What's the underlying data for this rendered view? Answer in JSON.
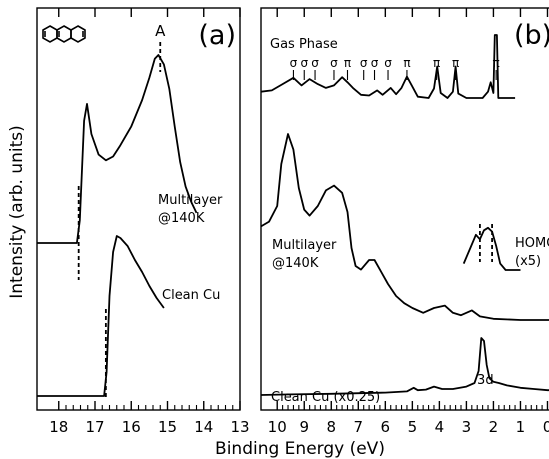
{
  "figure": {
    "ylabel": "Intensity (arb. units)",
    "xlabel": "Binding Energy (eV)"
  },
  "chart_data": [
    {
      "type": "line",
      "panel_label": "(a)",
      "molecule_icon": "anthracene-structure-icon",
      "xlim": [
        18.6,
        13.0
      ],
      "x_axis_reversed": true,
      "xticks": [
        18,
        17,
        16,
        15,
        14,
        13
      ],
      "peak_label": "A",
      "peak_label_x": 15.2,
      "series": [
        {
          "name": "Multilayer @140K",
          "label_lines": [
            "Multilayer",
            "@140K"
          ],
          "cutoff_marker_x": 17.45,
          "points": [
            [
              18.6,
              0.0
            ],
            [
              17.5,
              0.0
            ],
            [
              17.42,
              0.12
            ],
            [
              17.3,
              0.65
            ],
            [
              17.22,
              0.74
            ],
            [
              17.1,
              0.58
            ],
            [
              16.9,
              0.47
            ],
            [
              16.7,
              0.44
            ],
            [
              16.5,
              0.46
            ],
            [
              16.3,
              0.52
            ],
            [
              16.0,
              0.62
            ],
            [
              15.7,
              0.76
            ],
            [
              15.5,
              0.88
            ],
            [
              15.35,
              0.98
            ],
            [
              15.25,
              1.0
            ],
            [
              15.1,
              0.95
            ],
            [
              14.95,
              0.82
            ],
            [
              14.8,
              0.62
            ],
            [
              14.65,
              0.43
            ],
            [
              14.5,
              0.3
            ],
            [
              14.35,
              0.22
            ],
            [
              14.2,
              0.16
            ]
          ]
        },
        {
          "name": "Clean Cu",
          "label_lines": [
            "Clean Cu"
          ],
          "cutoff_marker_x": 16.7,
          "points": [
            [
              18.6,
              0.0
            ],
            [
              16.75,
              0.0
            ],
            [
              16.68,
              0.12
            ],
            [
              16.6,
              0.5
            ],
            [
              16.5,
              0.72
            ],
            [
              16.4,
              0.8
            ],
            [
              16.3,
              0.79
            ],
            [
              16.1,
              0.75
            ],
            [
              15.9,
              0.68
            ],
            [
              15.7,
              0.62
            ],
            [
              15.5,
              0.55
            ],
            [
              15.3,
              0.49
            ],
            [
              15.1,
              0.44
            ]
          ]
        }
      ]
    },
    {
      "type": "line",
      "panel_label": "(b)",
      "xlim": [
        10.6,
        -0.5
      ],
      "x_axis_reversed": true,
      "xticks": [
        10,
        9,
        8,
        7,
        6,
        5,
        4,
        3,
        2,
        1,
        0
      ],
      "series": [
        {
          "name": "Gas Phase",
          "label_lines": [
            "Gas Phase"
          ],
          "orbital_labels": [
            {
              "x": 9.4,
              "text": "σ"
            },
            {
              "x": 9.0,
              "text": "σ"
            },
            {
              "x": 8.6,
              "text": "σ"
            },
            {
              "x": 7.9,
              "text": "σ"
            },
            {
              "x": 7.4,
              "text": "π"
            },
            {
              "x": 6.8,
              "text": "σ"
            },
            {
              "x": 6.4,
              "text": "σ"
            },
            {
              "x": 5.9,
              "text": "σ"
            },
            {
              "x": 5.2,
              "text": "π"
            },
            {
              "x": 4.1,
              "text": "π"
            },
            {
              "x": 3.4,
              "text": "π"
            },
            {
              "x": 1.9,
              "text": "π"
            }
          ],
          "points": [
            [
              10.6,
              0.1
            ],
            [
              10.2,
              0.12
            ],
            [
              9.8,
              0.22
            ],
            [
              9.4,
              0.32
            ],
            [
              9.1,
              0.2
            ],
            [
              8.8,
              0.3
            ],
            [
              8.5,
              0.22
            ],
            [
              8.2,
              0.16
            ],
            [
              7.9,
              0.2
            ],
            [
              7.6,
              0.33
            ],
            [
              7.4,
              0.25
            ],
            [
              7.2,
              0.16
            ],
            [
              6.9,
              0.05
            ],
            [
              6.6,
              0.04
            ],
            [
              6.3,
              0.12
            ],
            [
              6.1,
              0.05
            ],
            [
              5.8,
              0.16
            ],
            [
              5.6,
              0.06
            ],
            [
              5.4,
              0.16
            ],
            [
              5.2,
              0.34
            ],
            [
              5.05,
              0.22
            ],
            [
              4.8,
              0.02
            ],
            [
              4.4,
              0.0
            ],
            [
              4.2,
              0.15
            ],
            [
              4.08,
              0.5
            ],
            [
              3.95,
              0.08
            ],
            [
              3.7,
              0.0
            ],
            [
              3.5,
              0.1
            ],
            [
              3.4,
              0.5
            ],
            [
              3.3,
              0.07
            ],
            [
              3.0,
              0.0
            ],
            [
              2.4,
              0.0
            ],
            [
              2.2,
              0.1
            ],
            [
              2.1,
              0.25
            ],
            [
              2.0,
              0.08
            ],
            [
              1.95,
              1.0
            ],
            [
              1.87,
              1.0
            ],
            [
              1.82,
              0.0
            ],
            [
              1.2,
              0.0
            ]
          ]
        },
        {
          "name": "Multilayer @140K",
          "label_lines": [
            "Multilayer",
            "@140K"
          ],
          "points": [
            [
              10.6,
              0.78
            ],
            [
              10.3,
              0.82
            ],
            [
              10.0,
              0.95
            ],
            [
              9.85,
              1.3
            ],
            [
              9.6,
              1.55
            ],
            [
              9.4,
              1.42
            ],
            [
              9.2,
              1.1
            ],
            [
              9.0,
              0.92
            ],
            [
              8.8,
              0.87
            ],
            [
              8.5,
              0.95
            ],
            [
              8.2,
              1.08
            ],
            [
              7.9,
              1.12
            ],
            [
              7.6,
              1.06
            ],
            [
              7.4,
              0.9
            ],
            [
              7.25,
              0.6
            ],
            [
              7.1,
              0.45
            ],
            [
              6.9,
              0.42
            ],
            [
              6.6,
              0.5
            ],
            [
              6.4,
              0.5
            ],
            [
              6.2,
              0.42
            ],
            [
              5.9,
              0.3
            ],
            [
              5.6,
              0.2
            ],
            [
              5.3,
              0.14
            ],
            [
              5.0,
              0.1
            ],
            [
              4.6,
              0.06
            ],
            [
              4.2,
              0.1
            ],
            [
              3.8,
              0.12
            ],
            [
              3.5,
              0.06
            ],
            [
              3.2,
              0.04
            ],
            [
              2.8,
              0.08
            ],
            [
              2.5,
              0.03
            ],
            [
              2.0,
              0.01
            ],
            [
              1.0,
              0.0
            ],
            [
              0.0,
              0.0
            ],
            [
              -0.5,
              0.0
            ]
          ]
        },
        {
          "name": "HOMO (x5)",
          "label_lines": [
            "HOMO",
            "(x5)"
          ],
          "inset": true,
          "marker_x": [
            2.5,
            2.05
          ],
          "points": [
            [
              3.1,
              0.1
            ],
            [
              2.85,
              0.35
            ],
            [
              2.65,
              0.55
            ],
            [
              2.5,
              0.48
            ],
            [
              2.35,
              0.62
            ],
            [
              2.2,
              0.66
            ],
            [
              2.05,
              0.6
            ],
            [
              1.9,
              0.38
            ],
            [
              1.75,
              0.1
            ],
            [
              1.55,
              0.0
            ],
            [
              1.0,
              0.0
            ]
          ]
        },
        {
          "name": "Clean Cu (x0.25)",
          "label_lines": [
            "Clean Cu (x0.25)"
          ],
          "annotation": "3d",
          "annotation_x": 2.3,
          "points": [
            [
              10.6,
              0.0
            ],
            [
              9.5,
              0.01
            ],
            [
              8.0,
              0.02
            ],
            [
              6.0,
              0.04
            ],
            [
              5.2,
              0.06
            ],
            [
              4.95,
              0.12
            ],
            [
              4.8,
              0.08
            ],
            [
              4.5,
              0.09
            ],
            [
              4.2,
              0.14
            ],
            [
              3.9,
              0.1
            ],
            [
              3.5,
              0.1
            ],
            [
              3.0,
              0.14
            ],
            [
              2.7,
              0.2
            ],
            [
              2.55,
              0.4
            ],
            [
              2.45,
              0.95
            ],
            [
              2.35,
              0.9
            ],
            [
              2.25,
              0.5
            ],
            [
              2.15,
              0.28
            ],
            [
              2.0,
              0.22
            ],
            [
              1.8,
              0.2
            ],
            [
              1.5,
              0.16
            ],
            [
              1.0,
              0.12
            ],
            [
              0.5,
              0.1
            ],
            [
              0.0,
              0.08
            ],
            [
              -0.5,
              0.08
            ]
          ]
        }
      ]
    }
  ]
}
